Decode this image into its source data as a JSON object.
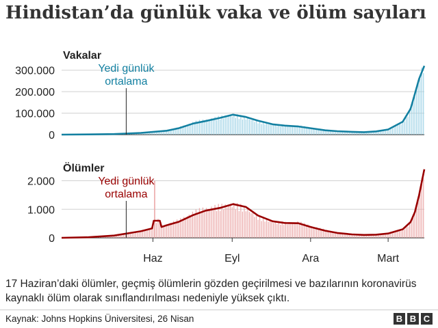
{
  "title": "Hindistan’da günlük vaka ve ölüm sayıları",
  "note": "17 Haziran’daki ölümler, geçmiş ölümlerin gözden geçirilmesi ve bazılarının koronavirüs kaynaklı ölüm olarak sınıflandırılması nedeniyle yüksek çıktı.",
  "source": "Kaynak: Johns Hopkins Üniversitesi, 26 Nisan",
  "logo": [
    "B",
    "B",
    "C"
  ],
  "colors": {
    "cases_line": "#1380a1",
    "cases_bar": "#9fd3e6",
    "deaths_line": "#990000",
    "deaths_bar": "#eba8a8",
    "axis_text": "#222222",
    "grid": "#d0d0d0"
  },
  "chart_data": [
    {
      "type": "area",
      "title": "Vakalar",
      "x_start": "2020-03-01",
      "x_end": "2021-04-26",
      "ylim": [
        0,
        350000
      ],
      "yticks": [
        0,
        100000,
        200000,
        300000
      ],
      "ytick_labels": [
        "0",
        "100.000",
        "200.000",
        "300.000"
      ],
      "grid": true,
      "annotation": {
        "lines": [
          "Yedi günlük",
          "ortalama"
        ],
        "date": "2020-05-15"
      },
      "series": [
        {
          "name": "Yedi günlük ortalama",
          "x": [
            "2020-03-01",
            "2020-04-01",
            "2020-05-01",
            "2020-06-01",
            "2020-07-01",
            "2020-07-15",
            "2020-08-01",
            "2020-08-15",
            "2020-09-01",
            "2020-09-16",
            "2020-10-01",
            "2020-10-15",
            "2020-11-01",
            "2020-11-15",
            "2020-12-01",
            "2020-12-15",
            "2021-01-01",
            "2021-01-15",
            "2021-02-01",
            "2021-02-15",
            "2021-03-01",
            "2021-03-15",
            "2021-04-01",
            "2021-04-10",
            "2021-04-15",
            "2021-04-20",
            "2021-04-26"
          ],
          "values": [
            0,
            1000,
            2500,
            8000,
            18000,
            30000,
            52000,
            63000,
            78000,
            93000,
            82000,
            65000,
            48000,
            42000,
            38000,
            30000,
            20000,
            16000,
            13000,
            11500,
            15000,
            24000,
            60000,
            120000,
            190000,
            260000,
            320000
          ]
        }
      ]
    },
    {
      "type": "area",
      "title": "Ölümler",
      "x_start": "2020-03-01",
      "x_end": "2021-04-26",
      "ylim": [
        0,
        2300
      ],
      "yticks": [
        0,
        1000,
        2000
      ],
      "ytick_labels": [
        "0",
        "1.000",
        "2.000"
      ],
      "grid": true,
      "annotation": {
        "lines": [
          "Yedi günlük",
          "ortalama"
        ],
        "date": "2020-05-15"
      },
      "spike": {
        "date": "2020-06-17",
        "value": 2000
      },
      "series": [
        {
          "name": "Yedi günlük ortalama",
          "x": [
            "2020-03-01",
            "2020-04-01",
            "2020-05-01",
            "2020-06-01",
            "2020-06-14",
            "2020-06-16",
            "2020-06-23",
            "2020-06-25",
            "2020-07-01",
            "2020-07-15",
            "2020-08-01",
            "2020-08-15",
            "2020-09-01",
            "2020-09-16",
            "2020-10-01",
            "2020-10-15",
            "2020-11-01",
            "2020-11-15",
            "2020-12-01",
            "2020-12-15",
            "2021-01-01",
            "2021-01-15",
            "2021-02-01",
            "2021-02-15",
            "2021-03-01",
            "2021-03-15",
            "2021-04-01",
            "2021-04-10",
            "2021-04-15",
            "2021-04-20",
            "2021-04-26"
          ],
          "values": [
            0,
            20,
            80,
            230,
            330,
            600,
            600,
            380,
            440,
            560,
            800,
            950,
            1050,
            1180,
            1080,
            780,
            580,
            520,
            510,
            380,
            250,
            170,
            120,
            100,
            110,
            150,
            300,
            550,
            900,
            1500,
            2400
          ]
        }
      ]
    }
  ],
  "x_axis": {
    "tick_labels": [
      "Haz",
      "Eyl",
      "Ara",
      "Mart"
    ],
    "tick_dates": [
      "2020-06-15",
      "2020-09-15",
      "2020-12-15",
      "2021-03-15"
    ]
  }
}
